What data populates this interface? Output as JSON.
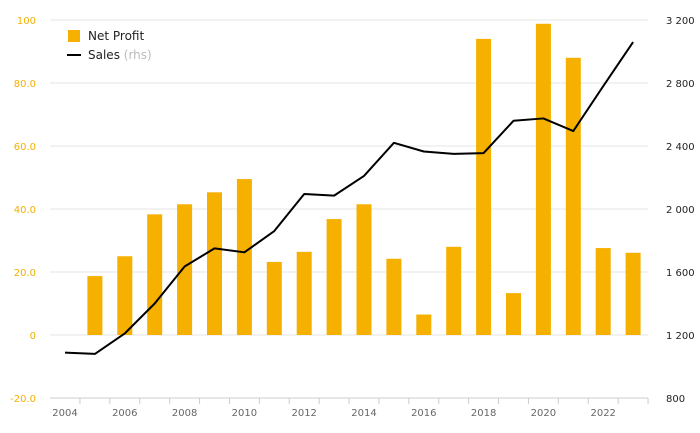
{
  "chart_data": {
    "type": "bar",
    "categories": [
      "2005",
      "2006",
      "2007",
      "2008",
      "2009",
      "2010",
      "2011",
      "2012",
      "2013",
      "2014",
      "2015",
      "2016",
      "2017",
      "2018",
      "2019",
      "2020",
      "2021",
      "2022",
      "2023"
    ],
    "series": [
      {
        "name": "Net Profit",
        "type": "bar",
        "axis": "left",
        "values": [
          18.7,
          25.0,
          38.3,
          41.5,
          45.3,
          49.5,
          23.2,
          26.4,
          36.8,
          41.5,
          24.2,
          6.5,
          28.0,
          94.0,
          13.3,
          98.8,
          88.0,
          27.6,
          26.1
        ]
      },
      {
        "name": "Sales",
        "name_suffix": "(rhs)",
        "type": "line",
        "axis": "right",
        "values": [
          1080,
          1210,
          1400,
          1635,
          1750,
          1725,
          1860,
          2095,
          2085,
          2210,
          2420,
          2365,
          2350,
          2355,
          2560,
          2575,
          2495,
          2780,
          3060
        ],
        "extra_start": {
          "x": "2004",
          "value": 1088
        }
      }
    ],
    "x_ticks": [
      "2004",
      "2006",
      "2008",
      "2010",
      "2012",
      "2014",
      "2016",
      "2018",
      "2020",
      "2022"
    ],
    "y_left": {
      "min": -20,
      "max": 100,
      "ticks": [
        "-20.0",
        "0",
        "20.0",
        "40.0",
        "60.0",
        "80.0",
        "100"
      ]
    },
    "y_right": {
      "min": 800,
      "max": 3200,
      "ticks": [
        "800",
        "1 200",
        "1 600",
        "2 000",
        "2 400",
        "2 800",
        "3 200"
      ]
    },
    "grid": true,
    "legend": "top-left",
    "colors": {
      "bar": "#f5b000",
      "line": "#000000",
      "left_ticks": "#f5b000",
      "right_ticks": "#222222"
    }
  }
}
